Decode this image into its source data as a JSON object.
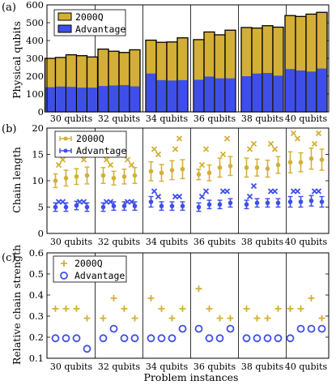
{
  "figure": {
    "xlabel": "Problem instances"
  },
  "colors": {
    "dwave2000q": "#d4af37",
    "advantage": "#3d4fe8",
    "edge": "#000000"
  },
  "chart_data": [
    {
      "panel_label": "(a)",
      "type": "bar",
      "ylabel": "Physical qubits",
      "ylim": [
        0,
        600
      ],
      "yticks": [
        0,
        100,
        200,
        300,
        400,
        500,
        600
      ],
      "legend_position": "top-left",
      "groups": [
        "30 qubits",
        "32 qubits",
        "34 qubits",
        "36 qubits",
        "38 qubits",
        "40 qubits"
      ],
      "series": [
        {
          "name": "2000Q",
          "values": [
            [
              300,
              305,
              320,
              315,
              308
            ],
            [
              352,
              340,
              333,
              348,
              0
            ],
            [
              402,
              390,
              392,
              415,
              0
            ],
            [
              405,
              448,
              432,
              458,
              0
            ],
            [
              473,
              470,
              483,
              475,
              0
            ],
            [
              540,
              535,
              548,
              558,
              0
            ]
          ]
        },
        {
          "name": "Advantage",
          "values": [
            [
              138,
              142,
              140,
              136,
              136
            ],
            [
              145,
              148,
              150,
              143,
              0
            ],
            [
              215,
              178,
              176,
              178,
              0
            ],
            [
              180,
              198,
              188,
              188,
              0
            ],
            [
              200,
              215,
              218,
              203,
              0
            ],
            [
              240,
              232,
              226,
              243,
              0
            ]
          ]
        }
      ],
      "bars_per_group": [
        5,
        4,
        4,
        4,
        4,
        4
      ]
    },
    {
      "panel_label": "(b)",
      "type": "scatter",
      "ylabel": "Chain length",
      "ylim": [
        0,
        20
      ],
      "yticks": [
        0,
        5,
        10,
        15,
        20
      ],
      "legend_position": "top-left",
      "groups": [
        "30 qubits",
        "32 qubits",
        "34 qubits",
        "36 qubits",
        "38 qubits",
        "40 qubits"
      ],
      "series": [
        {
          "name": "2000Q",
          "mean": [
            [
              10.0,
              10.5,
              10.8,
              11.0
            ],
            [
              11.0,
              10.5,
              10.8,
              11.0
            ],
            [
              11.8,
              11.5,
              12.0,
              12.2
            ],
            [
              11.2,
              11.5,
              12.5,
              12.8
            ],
            [
              12.5,
              12.5,
              12.3,
              13.0
            ],
            [
              13.5,
              13.5,
              14.2,
              14.0
            ]
          ],
          "err": [
            [
              1.3,
              1.5,
              1.5,
              1.6
            ],
            [
              1.5,
              1.3,
              1.4,
              1.5
            ],
            [
              1.8,
              1.6,
              1.8,
              1.8
            ],
            [
              1.0,
              1.5,
              1.8,
              1.8
            ],
            [
              1.8,
              1.6,
              1.6,
              1.6
            ],
            [
              2.0,
              1.8,
              2.0,
              2.0
            ]
          ],
          "max": [
            [
              13.0,
              14.0,
              16.2,
              14.0
            ],
            [
              14.0,
              13.0,
              14.0,
              13.0
            ],
            [
              16.0,
              15.0,
              16.0,
              18.0
            ],
            [
              13.0,
              16.0,
              15.0,
              18.0
            ],
            [
              16.0,
              17.0,
              17.0,
              16.0
            ],
            [
              19.0,
              18.0,
              17.0,
              19.0
            ]
          ]
        },
        {
          "name": "Advantage",
          "mean": [
            [
              5.0,
              5.0,
              5.3,
              5.0
            ],
            [
              5.0,
              5.2,
              5.2,
              5.2
            ],
            [
              6.0,
              5.2,
              5.2,
              5.2
            ],
            [
              5.0,
              5.5,
              5.5,
              5.8
            ],
            [
              5.5,
              5.8,
              5.8,
              5.8
            ],
            [
              6.0,
              6.0,
              6.2,
              6.0
            ]
          ],
          "err": [
            [
              0.8,
              0.8,
              0.8,
              0.8
            ],
            [
              0.8,
              0.8,
              0.8,
              0.8
            ],
            [
              1.0,
              0.8,
              0.8,
              0.8
            ],
            [
              0.8,
              0.8,
              0.8,
              0.8
            ],
            [
              0.8,
              0.8,
              0.8,
              0.8
            ],
            [
              1.0,
              1.0,
              1.0,
              1.0
            ]
          ],
          "max": [
            [
              6.0,
              6.0,
              6.0,
              6.0
            ],
            [
              6.0,
              6.0,
              6.0,
              6.0
            ],
            [
              8.0,
              7.0,
              7.0,
              7.0
            ],
            [
              7.0,
              8.0,
              8.0,
              8.0
            ],
            [
              7.0,
              9.0,
              8.0,
              8.0
            ],
            [
              8.0,
              8.0,
              8.0,
              8.0
            ]
          ]
        }
      ]
    },
    {
      "panel_label": "(c)",
      "type": "scatter",
      "ylabel": "Relative chain strength",
      "ylim": [
        0.1,
        0.6
      ],
      "yticks": [
        0.1,
        0.2,
        0.3,
        0.4,
        0.5,
        0.6
      ],
      "legend_position": "top-left",
      "groups": [
        "30 qubits",
        "32 qubits",
        "34 qubits",
        "36 qubits",
        "38 qubits",
        "40 qubits"
      ],
      "series": [
        {
          "name": "2000Q",
          "marker": "plus",
          "values": [
            [
              0.335,
              0.335,
              0.335,
              0.29
            ],
            [
              0.29,
              0.385,
              0.335,
              0.29
            ],
            [
              0.385,
              0.335,
              0.29,
              0.335
            ],
            [
              0.43,
              0.335,
              0.29,
              0.29
            ],
            [
              0.335,
              0.29,
              0.29,
              0.335
            ],
            [
              0.335,
              0.335,
              0.385,
              0.29
            ]
          ]
        },
        {
          "name": "Advantage",
          "marker": "circle",
          "values": [
            [
              0.195,
              0.195,
              0.195,
              0.145
            ],
            [
              0.195,
              0.24,
              0.195,
              0.195
            ],
            [
              0.195,
              0.195,
              0.195,
              0.24
            ],
            [
              0.24,
              0.195,
              0.195,
              0.24
            ],
            [
              0.195,
              0.195,
              0.195,
              0.195
            ],
            [
              0.195,
              0.24,
              0.24,
              0.24
            ]
          ]
        }
      ]
    }
  ]
}
